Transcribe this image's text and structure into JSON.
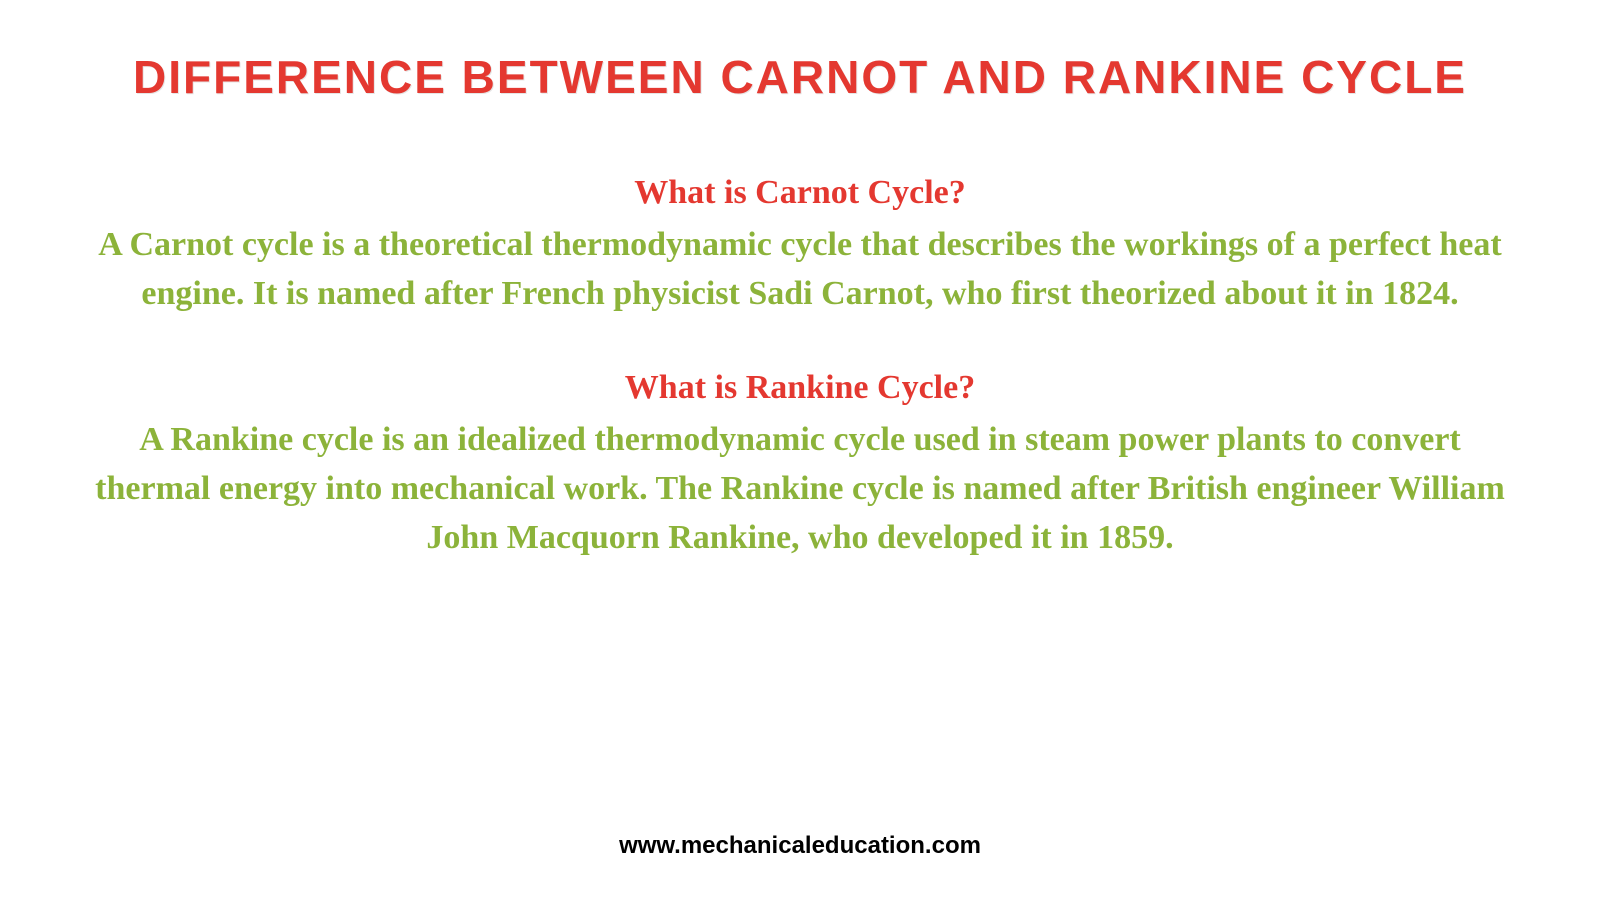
{
  "main_title": {
    "text": "Difference Between Carnot and Rankine Cycle",
    "color": "#e43830",
    "fontsize": 46
  },
  "sections": [
    {
      "subtitle": "What is Carnot Cycle?",
      "subtitle_color": "#e43830",
      "subtitle_fontsize": 34,
      "body": "A Carnot cycle is a theoretical thermodynamic cycle that describes the workings of a perfect heat engine. It is named after French physicist Sadi Carnot, who first theorized about it in 1824.",
      "body_color": "#8cb33a",
      "body_fontsize": 34
    },
    {
      "subtitle": "What is Rankine Cycle?",
      "subtitle_color": "#e43830",
      "subtitle_fontsize": 34,
      "body": "A Rankine cycle is an idealized thermodynamic cycle used in steam power plants to convert thermal energy into mechanical work. The Rankine cycle is named after British engineer William John Macquorn Rankine, who developed it in 1859.",
      "body_color": "#8cb33a",
      "body_fontsize": 34
    }
  ],
  "footer": {
    "text": "www.mechanicaleducation.com",
    "color": "#000000",
    "fontsize": 24
  },
  "background_color": "#ffffff"
}
